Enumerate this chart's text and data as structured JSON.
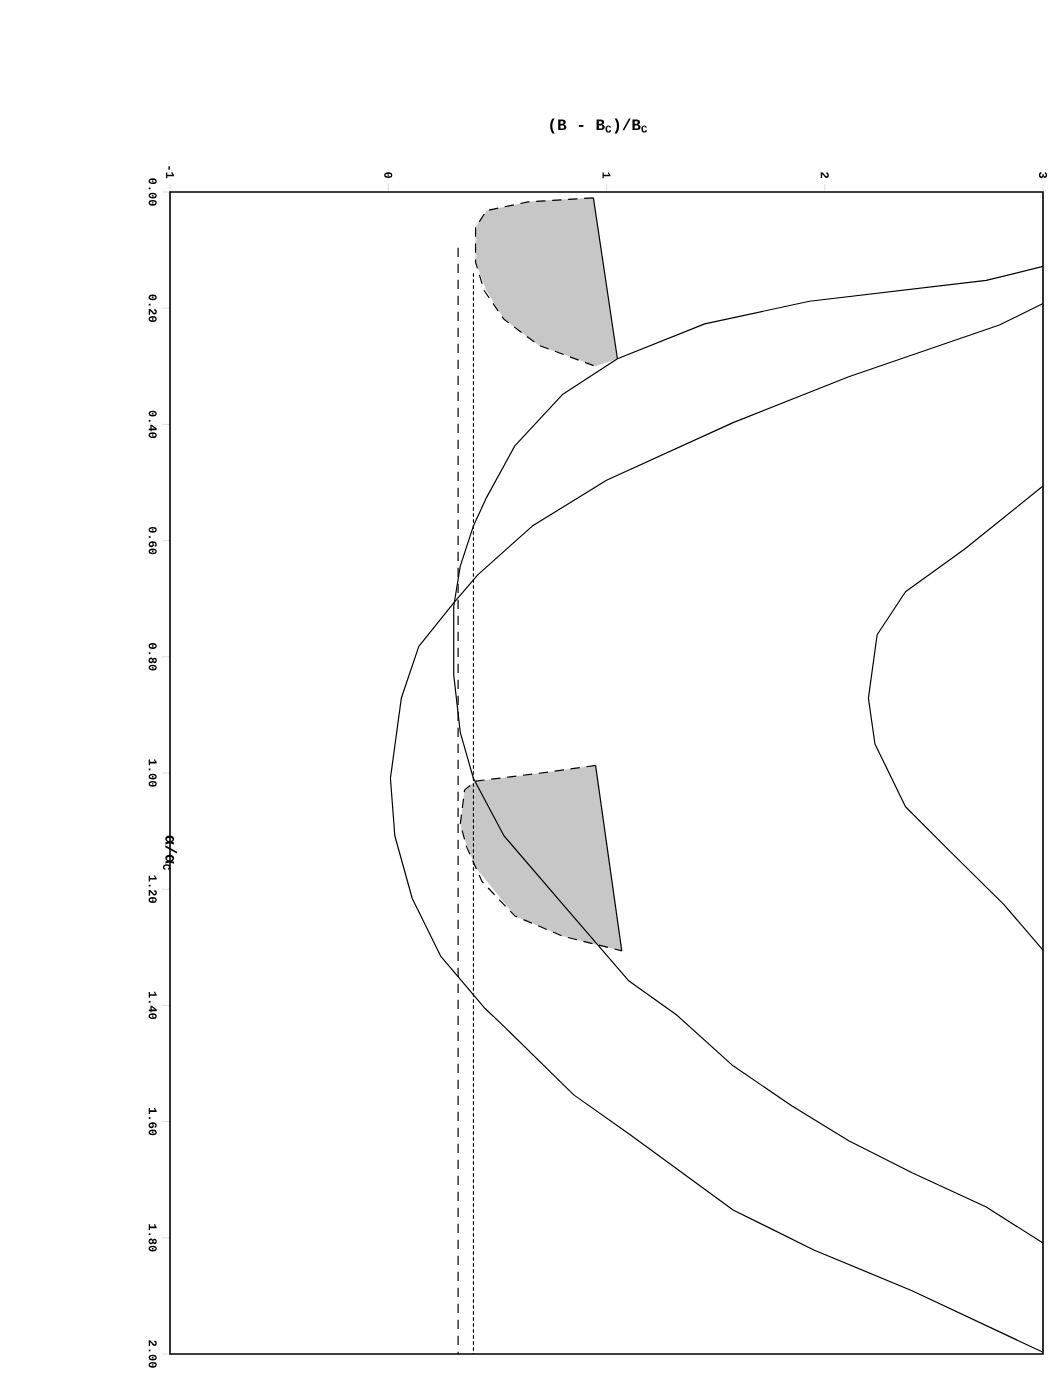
{
  "chart_data": {
    "type": "line",
    "xlabel": "(B - B$_{C}$)/B$_{C}$",
    "ylabel": "α/α$_{C}$",
    "xlim": [
      -1,
      3
    ],
    "ylim": [
      2,
      0
    ],
    "xticks": [
      -1,
      0,
      1,
      2,
      3
    ],
    "yticks": [
      {
        "value": 0,
        "label": "0.00"
      },
      {
        "value": 0.2,
        "label": "0.20"
      },
      {
        "value": 0.4,
        "label": "0.40"
      },
      {
        "value": 0.6,
        "label": "0.60"
      },
      {
        "value": 0.8,
        "label": "0.80"
      },
      {
        "value": 1.0,
        "label": "1.00"
      },
      {
        "value": 1.2,
        "label": "1.20"
      },
      {
        "value": 1.4,
        "label": "1.40"
      },
      {
        "value": 1.6,
        "label": "1.60"
      },
      {
        "value": 1.8,
        "label": "1.80"
      },
      {
        "value": 2.0,
        "label": "2.00"
      }
    ],
    "grid": false,
    "series": [
      {
        "color": "#000000",
        "line_style": "solid",
        "values": [
          0.128,
          0.152,
          0.188,
          0.227,
          0.287,
          0.348,
          0.437,
          0.526,
          0.575,
          0.644,
          0.713,
          0.831,
          0.93,
          1.009,
          1.108,
          1.226,
          1.357,
          1.416,
          1.504,
          1.573,
          1.633,
          1.688,
          1.747,
          1.809
        ],
        "x": [
          3,
          2.74,
          1.93,
          1.45,
          1.05,
          0.8,
          0.58,
          0.45,
          0.39,
          0.33,
          0.3,
          0.3,
          0.33,
          0.39,
          0.53,
          0.8,
          1.1,
          1.32,
          1.58,
          1.85,
          2.11,
          2.4,
          2.74,
          3
        ]
      },
      {
        "color": "#000000",
        "line_style": "solid",
        "values": [
          0.192,
          0.229,
          0.318,
          0.397,
          0.496,
          0.575,
          0.659,
          0.707,
          0.782,
          0.871,
          1.009,
          1.108,
          1.216,
          1.315,
          1.404,
          1.436,
          1.554,
          1.623,
          1.752,
          1.821,
          1.891,
          1.997
        ],
        "x": [
          3,
          2.8,
          2.11,
          1.58,
          1.0,
          0.66,
          0.41,
          0.3,
          0.14,
          0.06,
          0.01,
          0.03,
          0.11,
          0.24,
          0.44,
          0.53,
          0.85,
          1.11,
          1.58,
          1.95,
          2.4,
          3
        ]
      },
      {
        "color": "#000000",
        "line_style": "solid",
        "values": [
          0.506,
          0.615,
          0.688,
          0.762,
          0.871,
          0.95,
          1.058,
          1.137,
          1.226,
          1.305
        ],
        "x": [
          3,
          2.64,
          2.37,
          2.24,
          2.2,
          2.23,
          2.37,
          2.58,
          2.82,
          3
        ]
      },
      {
        "color": "#000000",
        "line_style": "dashed",
        "values": [
          0.096,
          2
        ],
        "x": [
          0.32,
          0.32
        ]
      },
      {
        "color": "#000000",
        "line_style": "dotted",
        "values": [
          0.14,
          2
        ],
        "x": [
          0.39,
          0.39
        ]
      },
      {
        "color": "#000000",
        "x": [
          0.4,
          0.45,
          0.53,
          0.64,
          0.69,
          0.94,
          0.95,
          1.05
        ],
        "values": [
          null,
          null,
          null,
          null,
          null,
          null,
          null,
          null
        ],
        "lower": [
          0.061,
          0.032,
          0.026,
          0.017,
          0.015,
          0.01,
          0.035,
          0.287
        ],
        "upper": [
          0.121,
          0.17,
          0.219,
          0.25,
          0.264,
          0.298,
          0.3,
          0.287
        ]
      },
      {
        "color": "#000000",
        "x": [
          0.33,
          0.35,
          0.4,
          0.58,
          0.7,
          0.8,
          0.95,
          1.07
        ],
        "values": [
          null,
          null,
          null,
          null,
          null,
          null,
          null,
          null
        ],
        "lower": [
          1.088,
          1.029,
          1.014,
          1.006,
          1.0,
          0.995,
          0.987,
          1.306
        ],
        "upper": [
          1.088,
          1.115,
          1.162,
          1.246,
          1.265,
          1.281,
          1.295,
          1.306
        ]
      },
      {
        "color": "#000000",
        "line_style": "dashed",
        "x": [
          0.94,
          0.64,
          0.45,
          0.4,
          0.4,
          0.44,
          0.53,
          0.69,
          0.95
        ],
        "values": [
          0.01,
          0.017,
          0.032,
          0.061,
          0.121,
          0.17,
          0.219,
          0.264,
          0.3
        ]
      },
      {
        "color": "#000000",
        "line_style": "solid",
        "x": [
          0.94,
          1.05
        ],
        "values": [
          0.01,
          0.287
        ]
      },
      {
        "color": "#000000",
        "line_style": "dashed",
        "x": [
          0.95,
          0.7,
          0.4,
          0.35,
          0.33,
          0.36,
          0.43,
          0.58,
          0.8,
          1.07
        ],
        "values": [
          0.987,
          1.0,
          1.014,
          1.029,
          1.088,
          1.128,
          1.187,
          1.246,
          1.281,
          1.306
        ]
      },
      {
        "color": "#000000",
        "line_style": "solid",
        "x": [
          0.95,
          1.07
        ],
        "values": [
          0.987,
          1.306
        ]
      }
    ]
  }
}
